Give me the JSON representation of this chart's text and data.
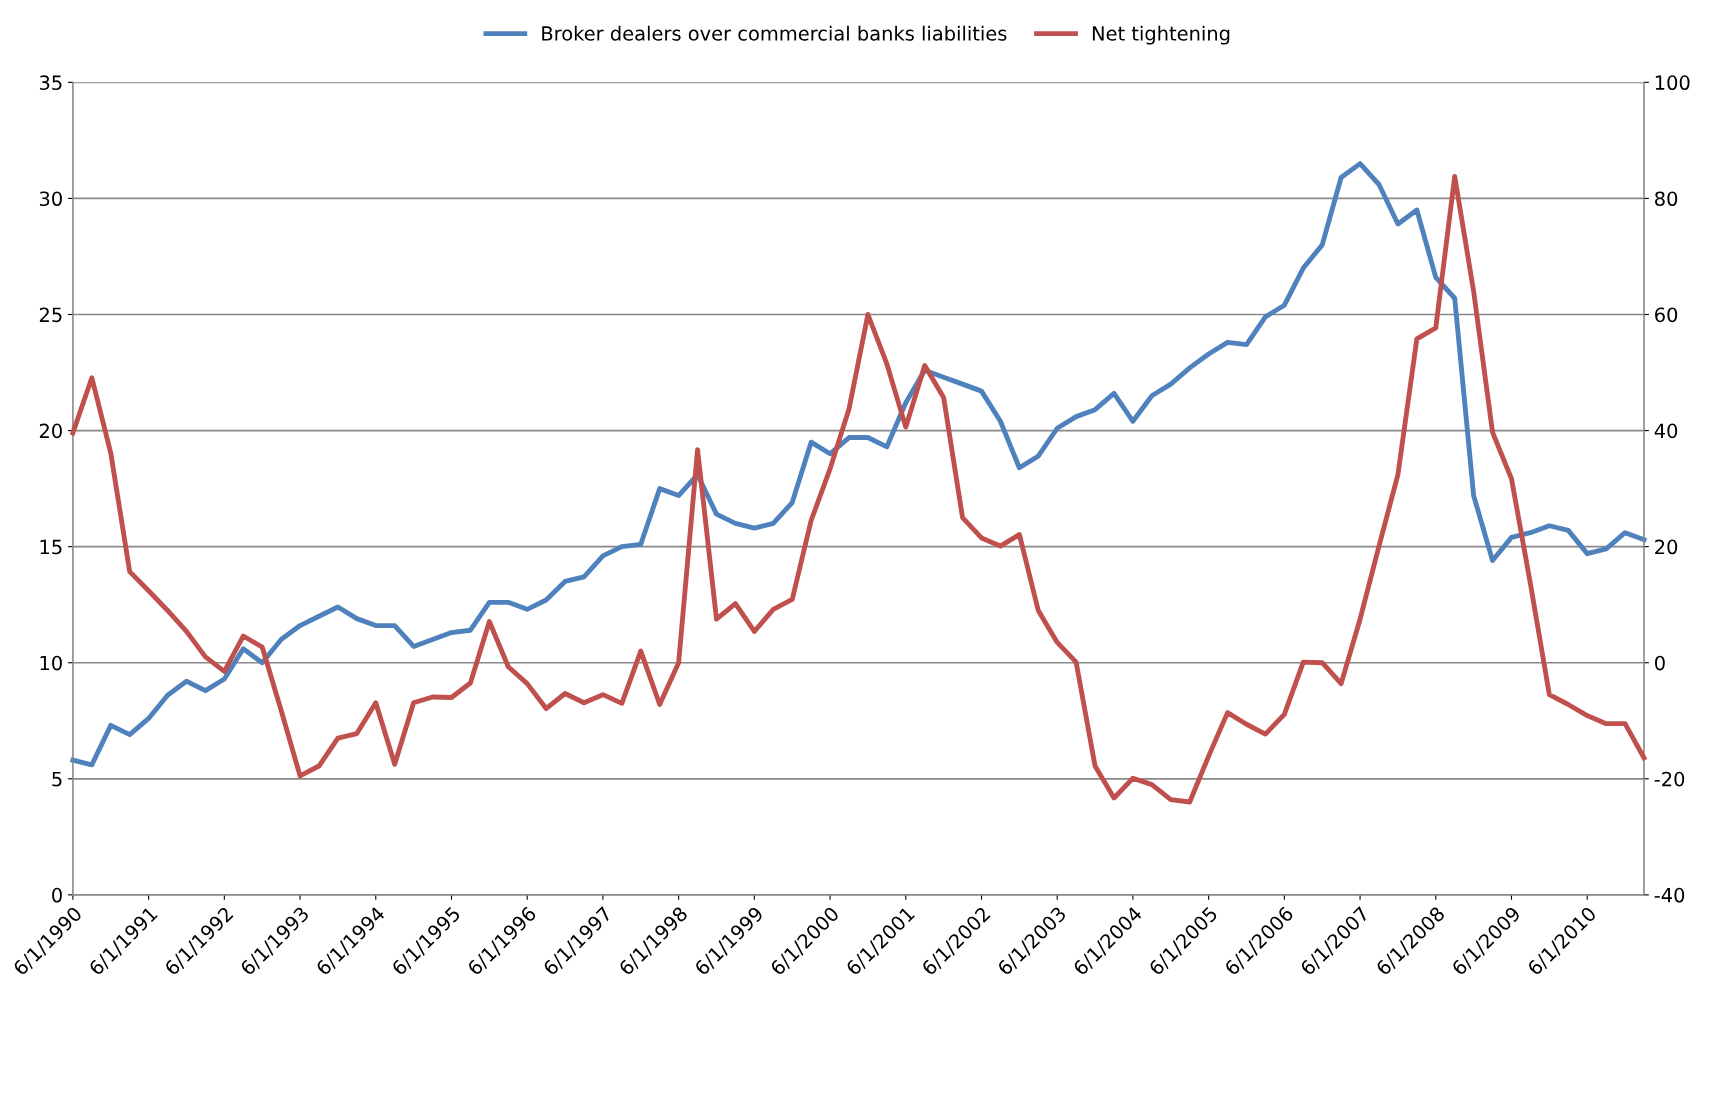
{
  "chart_data": {
    "type": "line",
    "categories": [
      "6/1/1990",
      null,
      null,
      null,
      "6/1/1991",
      null,
      null,
      null,
      "6/1/1992",
      null,
      null,
      null,
      "6/1/1993",
      null,
      null,
      null,
      "6/1/1994",
      null,
      null,
      null,
      "6/1/1995",
      null,
      null,
      null,
      "6/1/1996",
      null,
      null,
      null,
      "6/1/1997",
      null,
      null,
      null,
      "6/1/1998",
      null,
      null,
      null,
      "6/1/1999",
      null,
      null,
      null,
      "6/1/2000",
      null,
      null,
      null,
      "6/1/2001",
      null,
      null,
      null,
      "6/1/2002",
      null,
      null,
      null,
      "6/1/2003",
      null,
      null,
      null,
      "6/1/2004",
      null,
      null,
      null,
      "6/1/2005",
      null,
      null,
      null,
      "6/1/2006",
      null,
      null,
      null,
      "6/1/2007",
      null,
      null,
      null,
      "6/1/2008",
      null,
      null,
      null,
      "6/1/2009",
      null,
      null,
      null,
      "6/1/2010",
      null,
      null,
      null
    ],
    "series": [
      {
        "name": "Broker dealers over commercial banks liabilities",
        "color": "#4f81bd",
        "values": [
          5.8,
          5.6,
          7.3,
          6.9,
          7.6,
          8.6,
          9.2,
          8.8,
          9.3,
          10.6,
          10.0,
          11.0,
          11.6,
          12.0,
          12.4,
          11.9,
          11.6,
          11.6,
          10.7,
          11.0,
          11.3,
          11.4,
          12.6,
          12.6,
          12.3,
          12.7,
          13.5,
          13.7,
          14.6,
          15.0,
          15.1,
          17.5,
          17.2,
          18.1,
          16.4,
          16.0,
          15.8,
          16.0,
          16.9,
          19.5,
          19.0,
          19.7,
          19.7,
          19.3,
          21.2,
          22.6,
          22.3,
          22.0,
          21.7,
          20.4,
          18.4,
          18.9,
          20.1,
          20.6,
          20.9,
          21.6,
          20.4,
          21.5,
          22.0,
          22.7,
          23.3,
          23.8,
          23.7,
          24.9,
          25.4,
          27.0,
          28.0,
          30.9,
          31.5,
          30.6,
          28.9,
          29.5,
          26.6,
          25.7,
          17.2,
          14.4,
          15.4,
          15.6,
          15.9,
          15.7,
          14.7,
          14.9,
          15.6,
          15.3
        ]
      },
      {
        "name": "Net tightening",
        "color": "#c0504d",
        "axis": "y2",
        "values": [
          39.6,
          49.1,
          36.1,
          15.7,
          12.4,
          9.0,
          5.4,
          1.0,
          -1.5,
          4.6,
          2.7,
          -8.2,
          -19.5,
          -17.8,
          -13.0,
          -12.2,
          -6.9,
          -17.5,
          -6.9,
          -5.9,
          -6.0,
          -3.5,
          7.1,
          -0.7,
          -3.6,
          -7.9,
          -5.3,
          -6.9,
          -5.5,
          -7.0,
          2.0,
          -7.2,
          0.0,
          36.7,
          7.5,
          10.2,
          5.4,
          9.2,
          10.9,
          24.5,
          33.4,
          43.7,
          60.0,
          51.5,
          40.6,
          51.2,
          45.7,
          25.0,
          21.5,
          20.1,
          22.1,
          9.0,
          3.5,
          0.1,
          -17.8,
          -23.3,
          -19.9,
          -21.0,
          -23.6,
          -24.0,
          -16.1,
          -8.6,
          -10.6,
          -12.3,
          -8.9,
          0.1,
          0.0,
          -3.6,
          7.5,
          20.1,
          32.4,
          55.8,
          57.7,
          83.8,
          64.0,
          39.7,
          31.7,
          13.6,
          -5.5,
          -7.2,
          -9.1,
          -10.5,
          -10.5,
          -16.4
        ]
      }
    ],
    "ylim": [
      0,
      35
    ],
    "yticks": [
      0,
      5,
      10,
      15,
      20,
      25,
      30,
      35
    ],
    "y2lim": [
      -40,
      100
    ],
    "y2ticks": [
      -40,
      -20,
      0,
      20,
      40,
      60,
      80,
      100
    ],
    "grid": "y",
    "legend": "top",
    "marker": "none",
    "line_style": "solid"
  }
}
